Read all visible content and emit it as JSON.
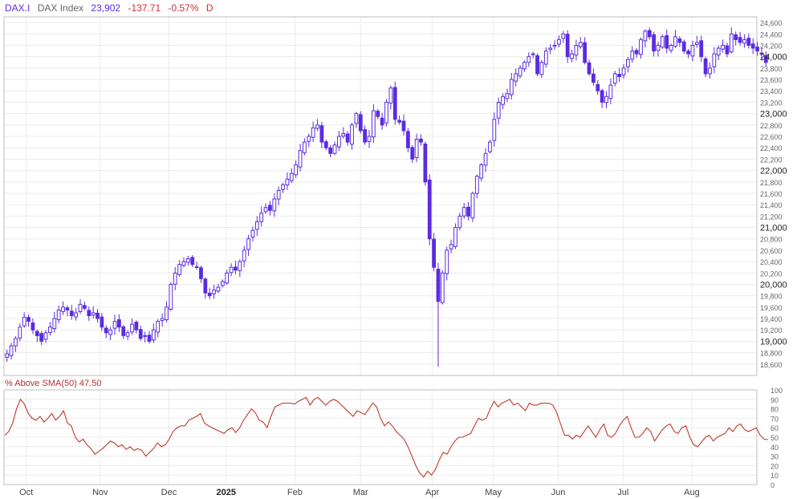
{
  "header": {
    "symbol": "DAX.I",
    "name": "DAX Index",
    "last": "23,902",
    "change": "-137.71",
    "change_pct": "-0.57%",
    "period": "D"
  },
  "indicator": {
    "label": "% Above SMA(50) 47.50"
  },
  "colors": {
    "candle": "#5b2be0",
    "indicator_line": "#c0392b",
    "negative": "#d32f2f"
  },
  "chart_data": [
    {
      "type": "candlestick",
      "title": "DAX Index",
      "ylim": [
        18400,
        24700
      ],
      "x_labels": [
        "Oct",
        "Nov",
        "Dec",
        "2025",
        "Feb",
        "Mar",
        "Apr",
        "May",
        "Jun",
        "Jul",
        "Aug"
      ],
      "y_ticks": [
        18600,
        18800,
        19000,
        19200,
        19400,
        19600,
        19800,
        20000,
        20200,
        20400,
        20600,
        20800,
        21000,
        21200,
        21400,
        21600,
        21800,
        22000,
        22200,
        22400,
        22600,
        22800,
        23000,
        23200,
        23400,
        23600,
        23800,
        24000,
        24200,
        24400,
        24600
      ],
      "y_tick_labels": [
        "18,600",
        "18,800",
        "19,000",
        "19,200",
        "19,400",
        "19,600",
        "19,800",
        "20,000",
        "20,200",
        "20,400",
        "20,600",
        "20,800",
        "21,000",
        "21,200",
        "21,400",
        "21,600",
        "21,800",
        "22,000",
        "22,200",
        "22,400",
        "22,600",
        "22,800",
        "23,000",
        "23,200",
        "23,400",
        "23,600",
        "23,800",
        "24,000",
        "24,200",
        "24,400",
        "24,600"
      ],
      "close": [
        18780,
        18920,
        19050,
        19250,
        19420,
        19350,
        19200,
        19100,
        19000,
        19150,
        19250,
        19400,
        19550,
        19600,
        19550,
        19450,
        19500,
        19650,
        19580,
        19450,
        19500,
        19400,
        19250,
        19150,
        19200,
        19350,
        19250,
        19100,
        19150,
        19300,
        19200,
        19050,
        19100,
        19000,
        19200,
        19350,
        19400,
        19600,
        20000,
        20200,
        20350,
        20400,
        20450,
        20350,
        20300,
        20100,
        19850,
        19800,
        19900,
        19950,
        20050,
        20200,
        20300,
        20250,
        20400,
        20600,
        20800,
        20950,
        21100,
        21250,
        21350,
        21300,
        21500,
        21650,
        21750,
        21850,
        21950,
        22100,
        22350,
        22500,
        22600,
        22750,
        22800,
        22500,
        22400,
        22300,
        22450,
        22600,
        22650,
        22500,
        22800,
        23000,
        22700,
        22500,
        22600,
        23050,
        22950,
        22800,
        23200,
        23450,
        22900,
        22850,
        22700,
        22400,
        22200,
        22550,
        22500,
        21800,
        20800,
        20300,
        19700,
        20200,
        20600,
        20700,
        21000,
        21200,
        21350,
        21200,
        21600,
        21900,
        22100,
        22300,
        22500,
        22900,
        23200,
        23300,
        23350,
        23600,
        23700,
        23800,
        23900,
        24000,
        24050,
        23700,
        23900,
        24100,
        24150,
        24200,
        24300,
        24400,
        24000,
        24050,
        24200,
        24250,
        23900,
        23700,
        23550,
        23400,
        23200,
        23300,
        23500,
        23700,
        23650,
        23800,
        23950,
        24100,
        24050,
        24300,
        24450,
        24350,
        24100,
        24200,
        24350,
        24150,
        24200,
        24350,
        24250,
        24100,
        24050,
        24200,
        24250,
        24000,
        23700,
        23800,
        24050,
        24150,
        24200,
        24050,
        24400,
        24300,
        24250,
        24300,
        24200,
        24150,
        24100,
        24050,
        23900
      ],
      "ylabel": ""
    },
    {
      "type": "line",
      "title": "% Above SMA(50) 47.50",
      "ylim": [
        0,
        100
      ],
      "y_ticks": [
        0,
        10,
        20,
        30,
        40,
        50,
        60,
        70,
        80,
        90,
        100
      ],
      "y_tick_labels": [
        "0",
        "10",
        "20",
        "30",
        "40",
        "50",
        "60",
        "70",
        "80",
        "90",
        "100"
      ],
      "values": [
        52,
        56,
        65,
        80,
        90,
        85,
        75,
        70,
        68,
        72,
        66,
        70,
        75,
        68,
        72,
        78,
        65,
        62,
        50,
        45,
        48,
        42,
        38,
        32,
        35,
        38,
        42,
        46,
        44,
        40,
        42,
        37,
        40,
        36,
        38,
        36,
        30,
        34,
        38,
        44,
        40,
        42,
        48,
        56,
        60,
        62,
        62,
        68,
        70,
        72,
        75,
        65,
        62,
        60,
        58,
        56,
        54,
        58,
        60,
        55,
        60,
        68,
        74,
        80,
        76,
        68,
        66,
        60,
        72,
        82,
        84,
        86,
        86,
        86,
        85,
        88,
        90,
        92,
        84,
        90,
        92,
        88,
        84,
        88,
        90,
        88,
        84,
        80,
        76,
        72,
        78,
        76,
        74,
        80,
        86,
        82,
        70,
        62,
        66,
        62,
        56,
        52,
        48,
        40,
        30,
        20,
        12,
        8,
        14,
        10,
        16,
        26,
        34,
        32,
        40,
        46,
        50,
        50,
        52,
        54,
        62,
        70,
        68,
        70,
        80,
        88,
        82,
        86,
        88,
        90,
        84,
        86,
        82,
        78,
        86,
        84,
        84,
        86,
        86,
        86,
        84,
        76,
        64,
        52,
        52,
        48,
        52,
        50,
        56,
        62,
        56,
        50,
        58,
        64,
        52,
        50,
        54,
        62,
        68,
        72,
        60,
        50,
        50,
        54,
        60,
        56,
        46,
        52,
        58,
        62,
        64,
        56,
        54,
        60,
        62,
        50,
        42,
        40,
        45,
        50,
        52,
        46,
        50,
        52,
        54,
        60,
        56,
        62,
        64,
        58,
        56,
        58,
        60,
        52,
        48,
        47.5
      ],
      "ylabel": ""
    }
  ]
}
